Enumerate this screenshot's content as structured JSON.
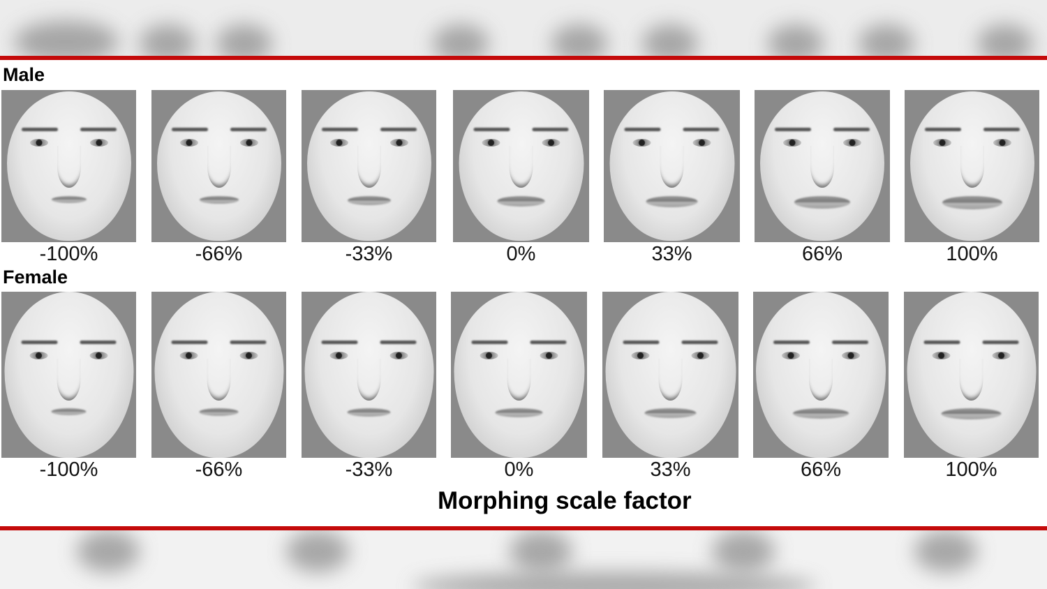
{
  "figure": {
    "rows": [
      {
        "label": "Male",
        "tiles": [
          {
            "value": "-100%"
          },
          {
            "value": "-66%"
          },
          {
            "value": "-33%"
          },
          {
            "value": "0%"
          },
          {
            "value": "33%"
          },
          {
            "value": "66%"
          },
          {
            "value": "100%"
          }
        ]
      },
      {
        "label": "Female",
        "tiles": [
          {
            "value": "-100%"
          },
          {
            "value": "-66%"
          },
          {
            "value": "-33%"
          },
          {
            "value": "0%"
          },
          {
            "value": "33%"
          },
          {
            "value": "66%"
          },
          {
            "value": "100%"
          }
        ]
      }
    ],
    "axis_title": "Morphing scale factor"
  },
  "colors": {
    "rule_red": "#c40a0a",
    "tile_background": "#8a8a8a"
  }
}
